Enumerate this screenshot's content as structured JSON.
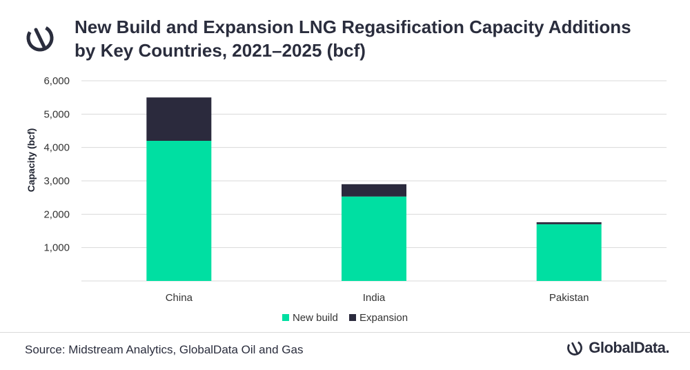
{
  "title_line1": "New Build and Expansion LNG Regasification Capacity Additions",
  "title_line2": "by Key Countries, 2021–2025 (bcf)",
  "source": "Source: Midstream Analytics, GlobalData Oil and Gas",
  "brand": "GlobalData.",
  "colors": {
    "new_build": "#00DFA2",
    "expansion": "#2B2A3D",
    "grid": "#d9d9d9"
  },
  "chart_data": {
    "type": "bar",
    "stacked": true,
    "title": "New Build and Expansion LNG Regasification Capacity Additions by Key Countries, 2021–2025 (bcf)",
    "xlabel": "",
    "ylabel": "Capacity (bcf)",
    "categories": [
      "China",
      "India",
      "Pakistan"
    ],
    "series": [
      {
        "name": "New build",
        "values": [
          4200,
          2530,
          1700
        ]
      },
      {
        "name": "Expansion",
        "values": [
          1300,
          370,
          60
        ]
      }
    ],
    "ylim": [
      0,
      6000
    ],
    "yticks": [
      1000,
      2000,
      3000,
      4000,
      5000,
      6000
    ],
    "ytick_labels": [
      "1,000",
      "2,000",
      "3,000",
      "4,000",
      "5,000",
      "6,000"
    ],
    "grid": true,
    "legend": "bottom"
  }
}
